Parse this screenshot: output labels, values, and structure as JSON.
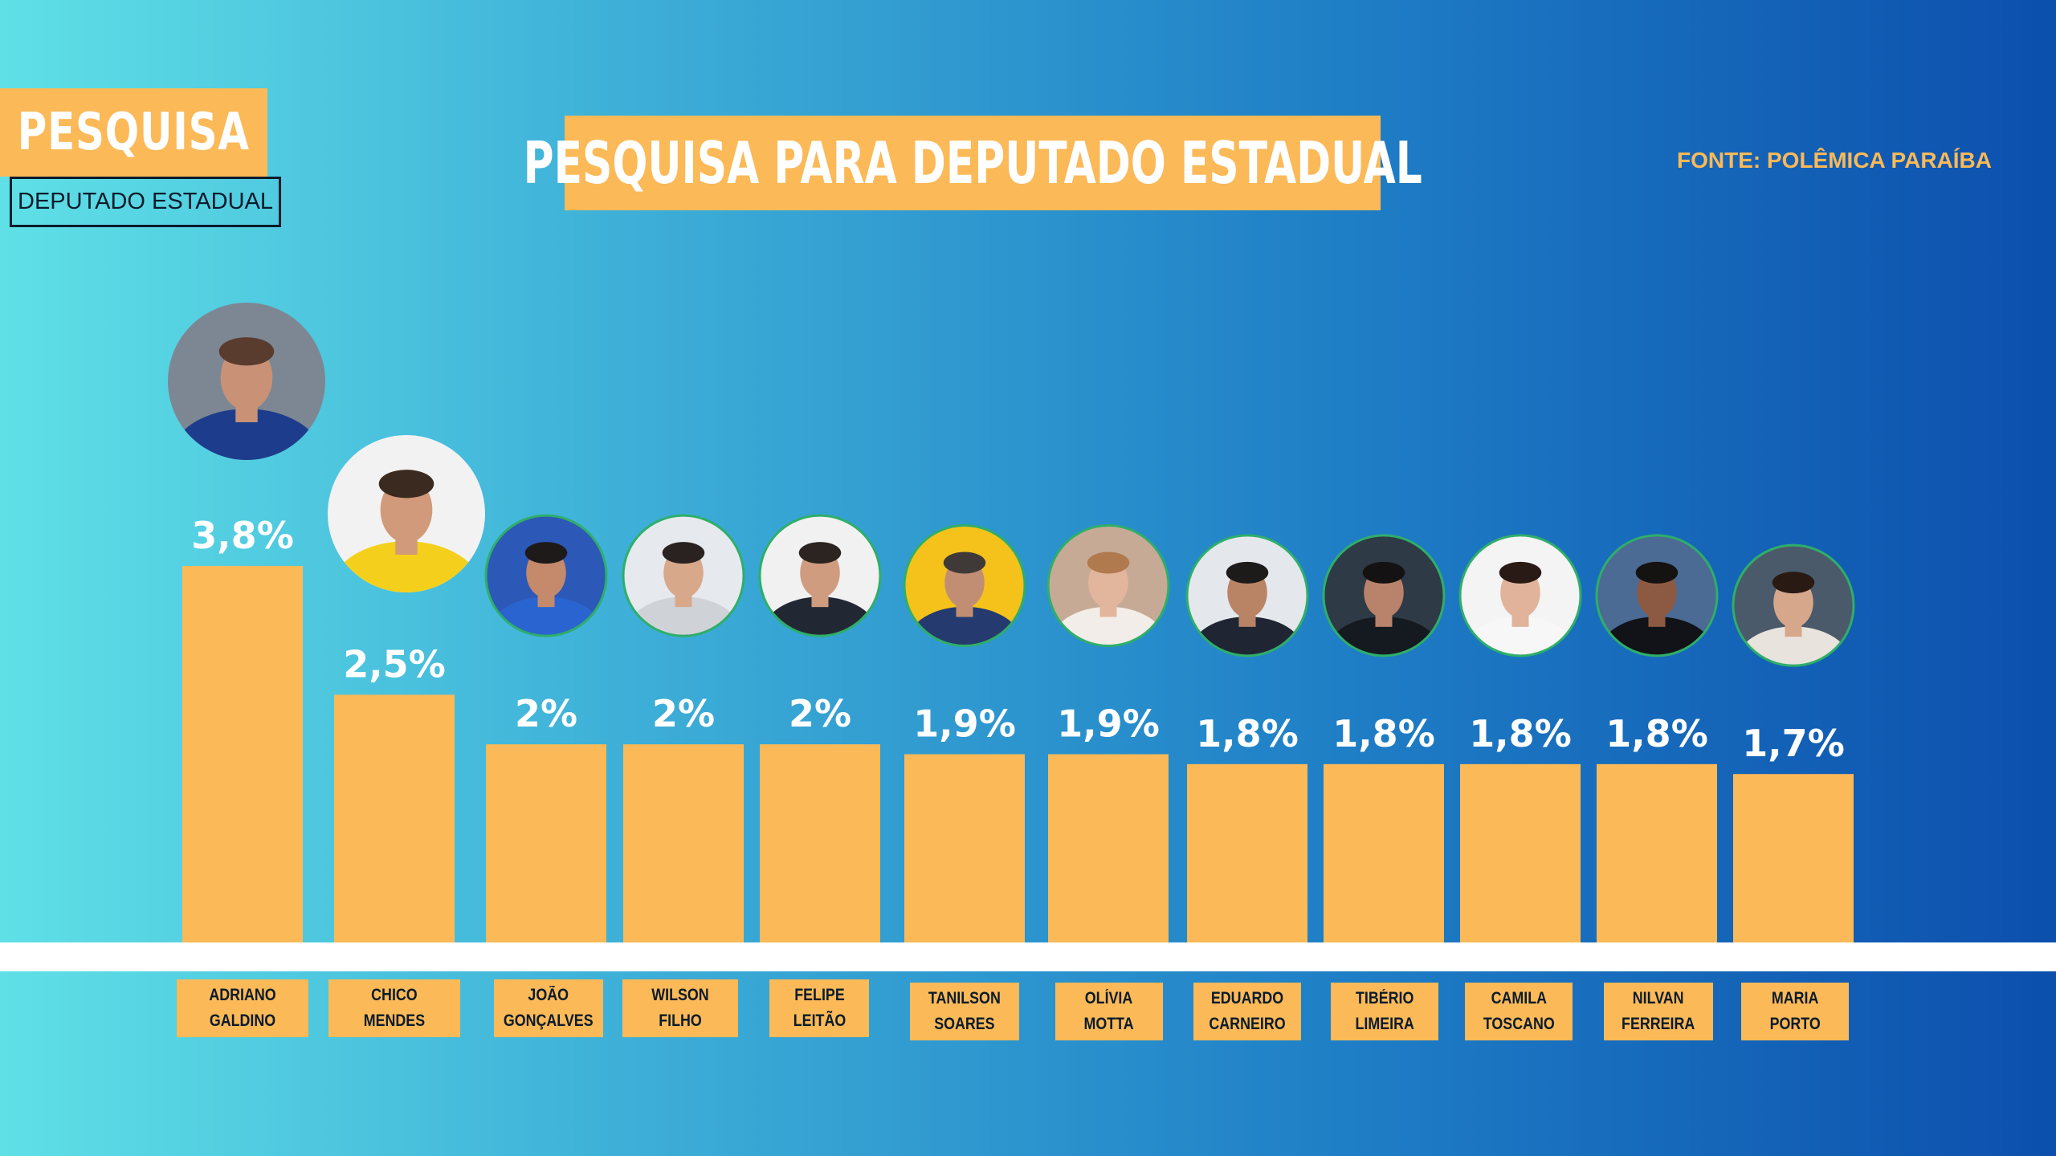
{
  "tag": {
    "title": "PESQUISA",
    "subtitle": "DEPUTADO ESTADUAL"
  },
  "headline": "PESQUISA PARA DEPUTADO ESTADUAL",
  "source": "FONTE: POLÊMICA PARAÍBA",
  "colors": {
    "bar": "#fbb957",
    "label_text": "#ffffff",
    "name_text": "#0b1b2b",
    "baseline": "#ffffff"
  },
  "chart_data": {
    "type": "bar",
    "title": "PESQUISA PARA DEPUTADO ESTADUAL",
    "xlabel": "",
    "ylabel": "",
    "ylim": [
      0,
      3.8
    ],
    "grid": false,
    "legend": "none",
    "categories": [
      "ADRIANO GALDINO",
      "CHICO MENDES",
      "JOÃO GONÇALVES",
      "WILSON FILHO",
      "FELIPE LEITÃO",
      "TANILSON SOARES",
      "OLÍVIA MOTTA",
      "EDUARDO CARNEIRO",
      "TIBÉRIO LIMEIRA",
      "CAMILA TOSCANO",
      "NILVAN FERREIRA",
      "MARIA PORTO"
    ],
    "values": [
      3.8,
      2.5,
      2,
      2,
      2,
      1.9,
      1.9,
      1.8,
      1.8,
      1.8,
      1.8,
      1.7
    ],
    "data_labels": [
      "3,8%",
      "2,5%",
      "2%",
      "2%",
      "2%",
      "1,9%",
      "1,9%",
      "1,8%",
      "1,8%",
      "1,8%",
      "1,8%",
      "1,7%"
    ],
    "name_lines": [
      [
        "ADRIANO",
        "GALDINO"
      ],
      [
        "CHICO",
        "MENDES"
      ],
      [
        "JOÃO",
        "GONÇALVES"
      ],
      [
        "WILSON",
        "FILHO"
      ],
      [
        "FELIPE",
        "LEITÃO"
      ],
      [
        "TANILSON",
        "SOARES"
      ],
      [
        "OLÍVIA",
        "MOTTA"
      ],
      [
        "EDUARDO",
        "CARNEIRO"
      ],
      [
        "TIBÉRIO",
        "LIMEIRA"
      ],
      [
        "CAMILA",
        "TOSCANO"
      ],
      [
        "NILVAN",
        "FERREIRA"
      ],
      [
        "MARIA",
        "PORTO"
      ]
    ]
  },
  "photos": [
    {
      "icon": "candidate-photo",
      "bg": "#7d8794",
      "suit": "#1d3d8c",
      "skin": "#c99276",
      "hair": "#5a3c2e"
    },
    {
      "icon": "candidate-photo",
      "bg": "#f2f2f2",
      "suit": "#f4d01c",
      "skin": "#d19a7a",
      "hair": "#3b2a20"
    },
    {
      "icon": "candidate-photo",
      "bg": "#2c58b8",
      "suit": "#2a64d0",
      "skin": "#c48a6b",
      "hair": "#1e1a19"
    },
    {
      "icon": "candidate-photo",
      "bg": "#e6e9ee",
      "suit": "#cfd3d8",
      "skin": "#d7a88a",
      "hair": "#2a2220"
    },
    {
      "icon": "candidate-photo",
      "bg": "#f1f1f1",
      "suit": "#222833",
      "skin": "#cf9c7f",
      "hair": "#2c2420"
    },
    {
      "icon": "candidate-photo",
      "bg": "#f4c21b",
      "suit": "#253a6f",
      "skin": "#c28e73",
      "hair": "#3f3a38"
    },
    {
      "icon": "candidate-photo",
      "bg": "#c7aa96",
      "suit": "#f2ede8",
      "skin": "#e2b69c",
      "hair": "#b07a4e"
    },
    {
      "icon": "candidate-photo",
      "bg": "#e4e8ec",
      "suit": "#1f2532",
      "skin": "#b98366",
      "hair": "#1d1a1a"
    },
    {
      "icon": "candidate-photo",
      "bg": "#2e3a45",
      "suit": "#151a20",
      "skin": "#b9826a",
      "hair": "#141212"
    },
    {
      "icon": "candidate-photo",
      "bg": "#f4f4f4",
      "suit": "#f7f7f7",
      "skin": "#e0b39a",
      "hair": "#2a1a15"
    },
    {
      "icon": "candidate-photo",
      "bg": "#4b6a94",
      "suit": "#111318",
      "skin": "#8c5a43",
      "hair": "#151212"
    },
    {
      "icon": "candidate-photo",
      "bg": "#4a5a6a",
      "suit": "#e9e3dd",
      "skin": "#d7a78c",
      "hair": "#2a1a14"
    }
  ]
}
